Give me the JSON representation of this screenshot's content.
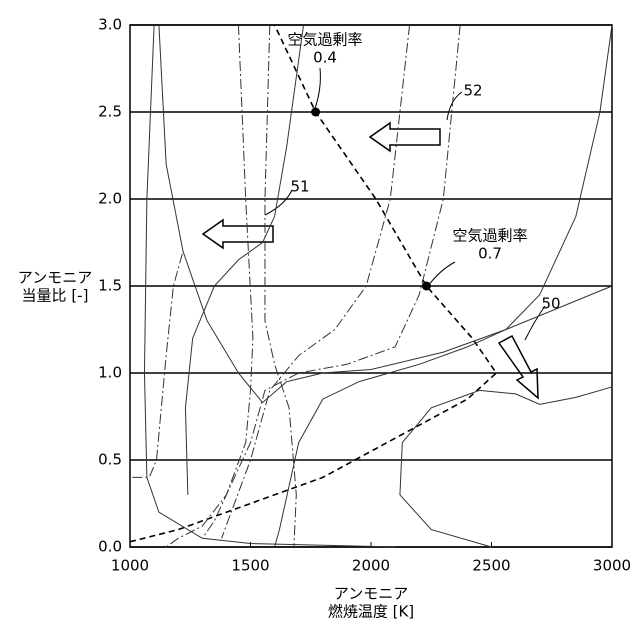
{
  "chart_data": {
    "type": "line",
    "xlabel": [
      "アンモニア",
      "燃焼温度 [K]"
    ],
    "ylabel": [
      "アンモニア",
      "当量比 [-]"
    ],
    "xlim": [
      1000,
      3000
    ],
    "xticks": [
      1000,
      1500,
      2000,
      2500,
      3000
    ],
    "ylim": [
      0,
      3
    ],
    "yticks": [
      {
        "value": 0,
        "label": "0.0"
      },
      0.5,
      {
        "value": 1,
        "label": "1.0"
      },
      1.5,
      {
        "value": 2,
        "label": "2.0"
      },
      2.5,
      {
        "value": 3,
        "label": "3.0"
      }
    ],
    "grid": true,
    "annotations": [
      {
        "label": "空気過剰率",
        "ratio": 0.4
      },
      {
        "label": "空気過剰率",
        "ratio": 0.7
      }
    ],
    "references": [
      "50",
      "51",
      "52"
    ],
    "series": [
      {
        "color": "#000000",
        "dash": "dashed",
        "x": [
          1000,
          1200,
          1400,
          1600,
          1800,
          2000,
          2200,
          2400,
          2520,
          2420,
          2230,
          2020,
          1770,
          1600
        ],
        "values": [
          0.03,
          0.1,
          0.2,
          0.3,
          0.4,
          0.55,
          0.7,
          0.85,
          1.0,
          1.2,
          1.5,
          2.0,
          2.5,
          3.0
        ]
      },
      {
        "color": "#000000",
        "dash": "none",
        "marker": true,
        "x": [
          1770,
          2230
        ],
        "values": [
          2.5,
          1.5
        ]
      },
      {
        "color": "#333333",
        "dash": "solid",
        "x": [
          2500,
          2250,
          2120,
          2130,
          2250,
          2450,
          2600,
          2700,
          2850,
          3000
        ],
        "values": [
          0,
          0.1,
          0.3,
          0.6,
          0.8,
          0.9,
          0.88,
          0.82,
          0.86,
          0.92
        ]
      },
      {
        "color": "#333333",
        "dash": "solid",
        "x": [
          1600,
          1620,
          1700,
          1800,
          1950,
          2200,
          2400,
          2560,
          2700,
          2850,
          2950,
          3000
        ],
        "values": [
          0,
          0.1,
          0.6,
          0.85,
          0.95,
          1.05,
          1.15,
          1.25,
          1.45,
          1.9,
          2.5,
          3.0
        ]
      },
      {
        "color": "#333333",
        "dash": "solid",
        "x": [
          1240,
          1230,
          1260,
          1350,
          1450,
          1550,
          1600,
          1650,
          1700,
          1720
        ],
        "values": [
          0.3,
          0.8,
          1.2,
          1.5,
          1.65,
          1.75,
          1.9,
          2.3,
          2.8,
          3.0
        ]
      },
      {
        "color": "#333333",
        "dash": "solid",
        "x": [
          1120,
          1150,
          1220,
          1320,
          1450,
          1550,
          1650,
          1800,
          2000,
          2300,
          2560,
          3000
        ],
        "values": [
          3.0,
          2.2,
          1.7,
          1.3,
          1.0,
          0.83,
          0.95,
          1.0,
          1.02,
          1.12,
          1.25,
          1.5
        ]
      },
      {
        "color": "#333333",
        "dash": "solid",
        "x": [
          1100,
          1070,
          1060,
          1070,
          1120,
          1300,
          1500,
          2100
        ],
        "values": [
          3.0,
          2.0,
          1.0,
          0.4,
          0.2,
          0.05,
          0.02,
          0.0
        ]
      },
      {
        "color": "#333333",
        "dash": "dashdot",
        "x": [
          1580,
          1560,
          1560,
          1600,
          1660,
          1690,
          1680
        ],
        "values": [
          3.0,
          2.0,
          1.3,
          1.05,
          0.8,
          0.3,
          0.0
        ]
      },
      {
        "color": "#333333",
        "dash": "dashdot",
        "x": [
          1450,
          1480,
          1510,
          1500,
          1480,
          1400,
          1300,
          1200,
          1150
        ],
        "values": [
          3.0,
          2.0,
          1.2,
          0.9,
          0.6,
          0.3,
          0.12,
          0.05,
          0.0
        ]
      },
      {
        "color": "#333333",
        "dash": "dashdot",
        "x": [
          2370,
          2300,
          2200,
          2100,
          1900,
          1700,
          1560,
          1500,
          1350,
          1300
        ],
        "values": [
          3.0,
          2.0,
          1.45,
          1.15,
          1.05,
          1.0,
          0.9,
          0.6,
          0.15,
          0.05
        ]
      },
      {
        "color": "#333333",
        "dash": "dashdot",
        "x": [
          2160,
          2080,
          1980,
          1850,
          1700,
          1580,
          1500,
          1420,
          1380
        ],
        "values": [
          3.0,
          2.0,
          1.5,
          1.25,
          1.1,
          0.9,
          0.5,
          0.2,
          0.05
        ]
      },
      {
        "color": "#333333",
        "dash": "dashdot",
        "x": [
          1010,
          1080,
          1110,
          1150,
          1180,
          1220
        ],
        "values": [
          0.4,
          0.4,
          0.5,
          1.1,
          1.5,
          1.7
        ]
      }
    ]
  }
}
